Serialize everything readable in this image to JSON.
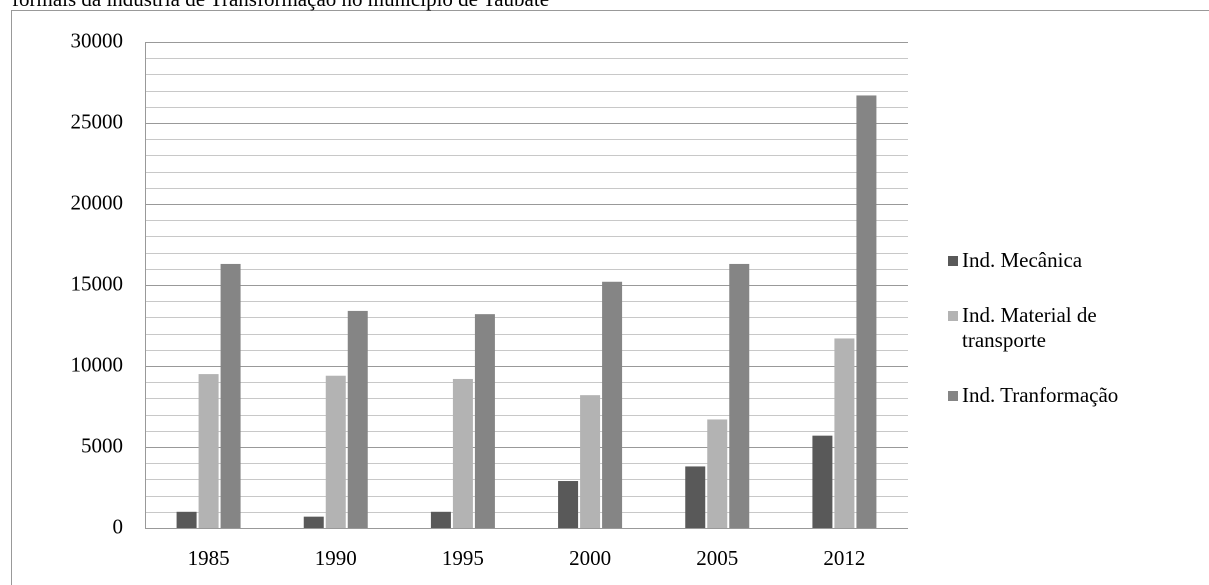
{
  "chart_data": {
    "type": "bar",
    "title": "formais da indústria de Transformação no município de Taubaté",
    "categories": [
      "1985",
      "1990",
      "1995",
      "2000",
      "2005",
      "2012"
    ],
    "series": [
      {
        "name": "Ind. Mecânica",
        "color": "#595959",
        "values": [
          1000,
          700,
          1000,
          2900,
          3800,
          5700
        ]
      },
      {
        "name": "Ind. Material de transporte",
        "color": "#b3b3b3",
        "values": [
          9500,
          9400,
          9200,
          8200,
          6700,
          11700
        ]
      },
      {
        "name": "Ind. Tranformação",
        "color": "#858585",
        "values": [
          16300,
          13400,
          13200,
          15200,
          16300,
          26700
        ]
      }
    ],
    "ylim": [
      0,
      30000
    ],
    "yticks": [
      0,
      5000,
      10000,
      15000,
      20000,
      25000,
      30000
    ],
    "ygrid_minor": [
      1000,
      2000,
      3000,
      4000,
      6000,
      7000,
      8000,
      9000,
      11000,
      12000,
      13000,
      14000,
      16000,
      17000,
      18000,
      19000,
      21000,
      22000,
      23000,
      24000,
      26000,
      27000,
      28000,
      29000
    ],
    "grid": true,
    "legend": "right"
  }
}
